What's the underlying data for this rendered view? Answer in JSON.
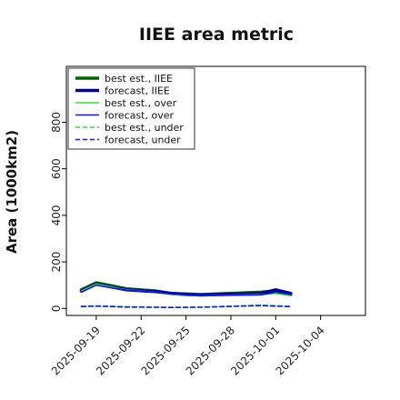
{
  "chart_data": {
    "type": "line",
    "title": "IIEE area metric",
    "ylabel": "Area (1000km2)",
    "xlabel": "",
    "ylim": [
      -30,
      1040
    ],
    "xlim": [
      "2025-09-17",
      "2025-10-07"
    ],
    "yticks": [
      0,
      200,
      400,
      600,
      800
    ],
    "ytick_labels": [
      "0",
      "200",
      "400",
      "600",
      "800"
    ],
    "xticks": [
      "2025-09-19",
      "2025-09-22",
      "2025-09-25",
      "2025-09-28",
      "2025-10-01",
      "2025-10-04"
    ],
    "xtick_labels": [
      {
        "text": "2025-09-19",
        "color": "#222222"
      },
      {
        "text": "2025-09-22",
        "color": "#222222"
      },
      {
        "text": "2025-09-25",
        "color": "#2e8b2e"
      },
      {
        "text": "2025-09-28",
        "color": "#222222"
      },
      {
        "text": "2025-10-01",
        "color": "#222222"
      },
      {
        "text": "2025-10-04",
        "color": "#222222"
      }
    ],
    "legend_position": "top-left",
    "grid": false,
    "series": [
      {
        "name": "best est., IIEE",
        "color": "#006400",
        "width": 3.5,
        "dash": "",
        "x": [
          "2025-09-18",
          "2025-09-19",
          "2025-09-21",
          "2025-09-23",
          "2025-09-24",
          "2025-09-26",
          "2025-09-30",
          "2025-10-01",
          "2025-10-02"
        ],
        "y": [
          80,
          110,
          85,
          75,
          65,
          60,
          70,
          75,
          60
        ]
      },
      {
        "name": "forecast, IIEE",
        "color": "#00008b",
        "width": 3.5,
        "dash": "",
        "x": [
          "2025-09-18",
          "2025-09-19",
          "2025-09-21",
          "2025-09-23",
          "2025-09-24",
          "2025-09-25",
          "2025-09-26",
          "2025-09-30",
          "2025-10-01",
          "2025-10-02"
        ],
        "y": [
          75,
          105,
          80,
          72,
          65,
          60,
          58,
          65,
          80,
          65
        ]
      },
      {
        "name": "best est., over",
        "color": "#33dd33",
        "width": 1.5,
        "dash": "",
        "x": [
          "2025-09-18",
          "2025-09-19",
          "2025-09-21",
          "2025-09-23",
          "2025-09-24",
          "2025-09-26",
          "2025-09-30",
          "2025-10-01",
          "2025-10-02"
        ],
        "y": [
          75,
          105,
          80,
          70,
          60,
          55,
          60,
          65,
          55
        ]
      },
      {
        "name": "forecast, over",
        "color": "#1111ee",
        "width": 1.5,
        "dash": "",
        "x": [
          "2025-09-18",
          "2025-09-19",
          "2025-09-21",
          "2025-09-23",
          "2025-09-24",
          "2025-09-26",
          "2025-09-30",
          "2025-10-01",
          "2025-10-02"
        ],
        "y": [
          70,
          100,
          78,
          70,
          62,
          55,
          58,
          70,
          60
        ]
      },
      {
        "name": "best est., under",
        "color": "#33dd33",
        "width": 1.5,
        "dash": "5,3",
        "x": [
          "2025-09-18",
          "2025-09-19",
          "2025-09-21",
          "2025-09-23",
          "2025-09-24",
          "2025-09-26",
          "2025-09-30",
          "2025-10-01",
          "2025-10-02"
        ],
        "y": [
          10,
          12,
          8,
          6,
          5,
          6,
          15,
          12,
          10
        ]
      },
      {
        "name": "forecast, under",
        "color": "#1111ee",
        "width": 1.5,
        "dash": "5,3",
        "x": [
          "2025-09-18",
          "2025-09-19",
          "2025-09-21",
          "2025-09-23",
          "2025-09-24",
          "2025-09-26",
          "2025-09-30",
          "2025-10-01",
          "2025-10-02"
        ],
        "y": [
          8,
          10,
          6,
          5,
          4,
          5,
          12,
          10,
          8
        ]
      }
    ]
  }
}
